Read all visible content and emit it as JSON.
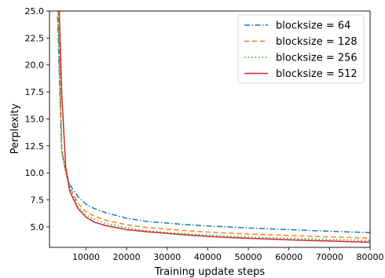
{
  "chart_data": {
    "type": "line",
    "title": "",
    "xlabel": "Training update steps",
    "ylabel": "Perplexity",
    "xlim": [
      1000,
      80000
    ],
    "ylim": [
      3.1,
      25.0
    ],
    "xticks": [
      10000,
      20000,
      30000,
      40000,
      50000,
      60000,
      70000,
      80000
    ],
    "xtick_labels": [
      "10000",
      "20000",
      "30000",
      "40000",
      "50000",
      "60000",
      "70000",
      "80000"
    ],
    "yticks": [
      5.0,
      7.5,
      10.0,
      12.5,
      15.0,
      17.5,
      20.0,
      22.5,
      25.0
    ],
    "ytick_labels": [
      "5.0",
      "7.5",
      "10.0",
      "12.5",
      "15.0",
      "17.5",
      "20.0",
      "22.5",
      "25.0"
    ],
    "grid": false,
    "legend_position": "top-right",
    "x": [
      3000,
      4000,
      5000,
      6000,
      8000,
      10000,
      12000,
      15000,
      20000,
      25000,
      30000,
      35000,
      40000,
      45000,
      50000,
      55000,
      60000,
      65000,
      70000,
      75000,
      80000
    ],
    "series": [
      {
        "name": "blocksize = 64",
        "color": "#1f77b4",
        "dash": "dashdot",
        "values": [
          24.5,
          12.0,
          10.2,
          8.9,
          7.8,
          7.1,
          6.7,
          6.3,
          5.8,
          5.5,
          5.35,
          5.2,
          5.08,
          5.0,
          4.9,
          4.82,
          4.74,
          4.67,
          4.6,
          4.53,
          4.47
        ]
      },
      {
        "name": "blocksize = 128",
        "color": "#ff7f0e",
        "dash": "dashed",
        "values": [
          28.0,
          12.3,
          10.1,
          8.7,
          7.2,
          6.4,
          6.0,
          5.6,
          5.2,
          4.95,
          4.78,
          4.64,
          4.52,
          4.42,
          4.34,
          4.27,
          4.2,
          4.13,
          4.07,
          4.01,
          3.96
        ]
      },
      {
        "name": "blocksize = 256",
        "color": "#2ca02c",
        "dash": "dotted",
        "values": [
          26.0,
          12.0,
          10.0,
          8.6,
          6.9,
          6.1,
          5.7,
          5.3,
          4.9,
          4.65,
          4.48,
          4.35,
          4.24,
          4.15,
          4.07,
          4.0,
          3.94,
          3.88,
          3.83,
          3.78,
          3.74
        ]
      },
      {
        "name": "blocksize = 512",
        "color": "#d62728",
        "dash": "solid",
        "values": [
          30.0,
          17.5,
          10.5,
          8.3,
          6.7,
          5.9,
          5.45,
          5.1,
          4.75,
          4.55,
          4.4,
          4.25,
          4.12,
          4.02,
          3.94,
          3.87,
          3.8,
          3.74,
          3.69,
          3.63,
          3.58
        ]
      }
    ]
  }
}
